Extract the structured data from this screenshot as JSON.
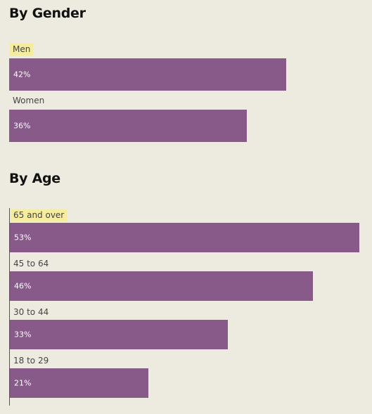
{
  "colors": {
    "background": "#edebe0",
    "bar": "#875a8a",
    "highlight": "#f5eca0"
  },
  "sections": {
    "gender_title": "By Gender",
    "age_title": "By Age"
  },
  "chart_data": [
    {
      "type": "bar",
      "orientation": "horizontal",
      "title": "By Gender",
      "categories": [
        "Men",
        "Women"
      ],
      "values": [
        42,
        36
      ],
      "labels": [
        "42%",
        "36%"
      ],
      "highlighted": [
        "Men"
      ],
      "unit": "%",
      "xlim": [
        0,
        100
      ]
    },
    {
      "type": "bar",
      "orientation": "horizontal",
      "title": "By Age",
      "categories": [
        "65 and over",
        "45 to 64",
        "30 to 44",
        "18 to 29"
      ],
      "values": [
        53,
        46,
        33,
        21
      ],
      "labels": [
        "53%",
        "46%",
        "33%",
        "21%"
      ],
      "highlighted": [
        "65 and over"
      ],
      "unit": "%",
      "xlim": [
        0,
        100
      ]
    }
  ]
}
